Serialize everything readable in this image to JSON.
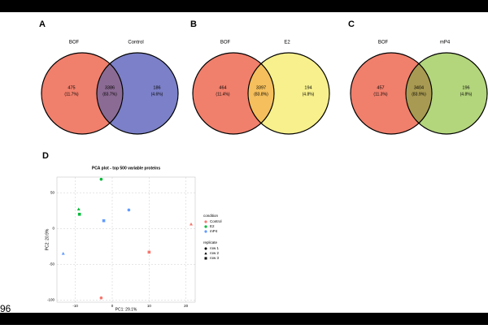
{
  "page_number": "96",
  "chart_data": [
    {
      "type": "venn",
      "panel": "A",
      "sets": [
        "BOF",
        "Control"
      ],
      "values": [
        475,
        3386,
        186
      ],
      "percent_labels": [
        "(11.7%)",
        "(83.7%)",
        "(4.6%)"
      ],
      "colors": [
        "#f07f6c",
        "#7b80c8",
        "#8b6b93"
      ]
    },
    {
      "type": "venn",
      "panel": "B",
      "sets": [
        "BOF",
        "E2"
      ],
      "values": [
        464,
        3397,
        194
      ],
      "percent_labels": [
        "(11.4%)",
        "(83.8%)",
        "(4.8%)"
      ],
      "colors": [
        "#f07f6c",
        "#f7f08c",
        "#f4bf5c"
      ]
    },
    {
      "type": "venn",
      "panel": "C",
      "sets": [
        "BOF",
        "mP4"
      ],
      "values": [
        457,
        3404,
        196
      ],
      "percent_labels": [
        "(11.3%)",
        "(83.9%)",
        "(4.8%)"
      ],
      "colors": [
        "#f07f6c",
        "#b3d57c",
        "#a89a52"
      ]
    },
    {
      "type": "scatter",
      "panel": "D",
      "title": "PCA plot - top 500 variable proteins",
      "xlabel": "PC1: 29.1%",
      "ylabel": "PC2: 20.9%",
      "xlim": [
        -15,
        22.5
      ],
      "ylim": [
        -103,
        72
      ],
      "xticks": [
        -10,
        0,
        10,
        20
      ],
      "yticks": [
        -100,
        -50,
        0,
        50
      ],
      "grid": true,
      "legend_title": "condition",
      "series": [
        {
          "name": "Control",
          "color": "#f8766d",
          "x": [
            -3,
            21.4,
            10
          ],
          "values": [
            -97,
            6,
            -33
          ],
          "shapes": [
            "circle",
            "triangle",
            "square"
          ]
        },
        {
          "name": "E2",
          "color": "#00ba38",
          "x": [
            -3,
            -9.1,
            -8.9
          ],
          "values": [
            69,
            27,
            20
          ],
          "shapes": [
            "circle",
            "triangle",
            "square"
          ]
        },
        {
          "name": "mP4",
          "color": "#619cff",
          "x": [
            4.5,
            -13.3,
            -2.3
          ],
          "values": [
            26,
            -35,
            11
          ],
          "shapes": [
            "circle",
            "triangle",
            "square"
          ]
        }
      ],
      "shape_legend": {
        "title": "replicate",
        "names": [
          "row 1",
          "row 2",
          "row 3"
        ],
        "shapes": [
          "circle",
          "triangle",
          "square"
        ]
      }
    }
  ]
}
